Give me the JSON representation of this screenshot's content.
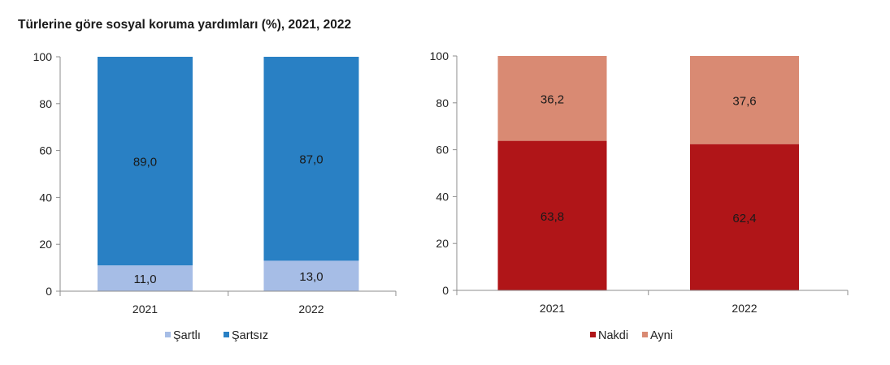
{
  "title": "Türlerine göre sosyal koruma yardımları (%), 2021, 2022",
  "chart_data": [
    {
      "type": "bar",
      "stacked": true,
      "title": "Türlerine göre sosyal koruma yardımları (%), 2021, 2022",
      "categories": [
        "2021",
        "2022"
      ],
      "yticks": [
        "0",
        "20",
        "40",
        "60",
        "80",
        "100"
      ],
      "ylim": [
        0,
        100
      ],
      "legend_position": "bottom",
      "series": [
        {
          "name": "Şartlı",
          "color": "#a6bde6",
          "values": [
            11.0,
            13.0
          ],
          "labels": [
            "11,0",
            "13,0"
          ]
        },
        {
          "name": "Şartsız",
          "color": "#2980c4",
          "values": [
            89.0,
            87.0
          ],
          "labels": [
            "89,0",
            "87,0"
          ]
        }
      ]
    },
    {
      "type": "bar",
      "stacked": true,
      "categories": [
        "2021",
        "2022"
      ],
      "yticks": [
        "0",
        "20",
        "40",
        "60",
        "80",
        "100"
      ],
      "ylim": [
        0,
        100
      ],
      "legend_position": "bottom",
      "series": [
        {
          "name": "Nakdi",
          "color": "#b01518",
          "values": [
            63.8,
            62.4
          ],
          "labels": [
            "63,8",
            "62,4"
          ]
        },
        {
          "name": "Ayni",
          "color": "#d98a73",
          "values": [
            36.2,
            37.6
          ],
          "labels": [
            "36,2",
            "37,6"
          ]
        }
      ]
    }
  ]
}
